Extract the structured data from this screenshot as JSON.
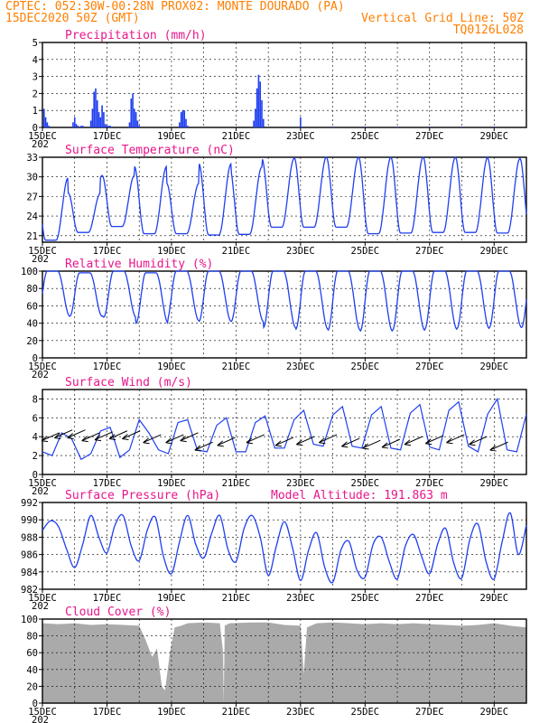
{
  "header": {
    "line1_left": "CPTEC:  052:30W-00:28N  PROX02: MONTE DOURADO (PA)",
    "line2_left": "15DEC2020 50Z (GMT)",
    "line2_right": "Vertical Grid Line: 50Z",
    "line3_right": "TQ0126L028"
  },
  "colors": {
    "header_text": "#ff7f00",
    "title_text": "#e8168c",
    "series_line": "#1f3ff0",
    "cloud_fill": "#aaaaaa",
    "axis": "#000000"
  },
  "x_axis": {
    "tick_labels": [
      "15DEC",
      "17DEC",
      "19DEC",
      "21DEC",
      "23DEC",
      "25DEC",
      "27DEC",
      "29DEC"
    ],
    "tick_days": [
      0,
      2,
      4,
      6,
      8,
      10,
      12,
      14
    ],
    "range_days": [
      0,
      15
    ],
    "year_fragment": "202"
  },
  "chart_data": [
    {
      "id": "precip",
      "type": "bar",
      "title": "Precipitation (mm/h)",
      "ylim": [
        0,
        5
      ],
      "yticks": [
        0,
        1,
        2,
        3,
        4,
        5
      ],
      "x_unit": "days since 15DEC2020",
      "x": [
        0.05,
        0.1,
        0.15,
        0.2,
        0.95,
        1.0,
        1.05,
        1.1,
        1.2,
        1.25,
        1.5,
        1.55,
        1.6,
        1.65,
        1.7,
        1.75,
        1.8,
        1.85,
        1.9,
        1.95,
        2.0,
        2.05,
        2.1,
        2.7,
        2.75,
        2.8,
        2.85,
        2.9,
        2.95,
        3.0,
        4.25,
        4.3,
        4.35,
        4.4,
        4.45,
        4.5,
        6.55,
        6.6,
        6.65,
        6.7,
        6.75,
        6.8,
        6.85,
        8.0,
        8.1,
        9.0,
        10.0,
        11.0,
        12.0,
        13.0,
        14.0
      ],
      "values": [
        1.1,
        0.6,
        0.3,
        0.1,
        0.3,
        0.6,
        0.2,
        0.1,
        0.1,
        0.1,
        0.4,
        1.1,
        2.1,
        2.3,
        1.6,
        0.9,
        0.6,
        1.3,
        0.9,
        0.2,
        0.1,
        0.1,
        0.1,
        0.3,
        1.7,
        2.0,
        1.1,
        0.9,
        0.4,
        0.1,
        0.3,
        0.9,
        1.0,
        1.0,
        0.5,
        0.1,
        0.4,
        1.1,
        2.3,
        3.1,
        2.7,
        1.6,
        0.5,
        0.6,
        0.05,
        0.05,
        0.05,
        0.05,
        0.05,
        0.05,
        0.05
      ]
    },
    {
      "id": "temp",
      "type": "line",
      "title": "Surface Temperature (nC)",
      "ylim": [
        20,
        33
      ],
      "yticks": [
        21,
        24,
        27,
        30,
        33
      ],
      "max_days": [
        0.8,
        1.8,
        2.85,
        3.85,
        4.85,
        5.85,
        6.8,
        7.8,
        8.8,
        9.8,
        10.8,
        11.8,
        12.8,
        13.8,
        14.8
      ],
      "max_values": [
        29.9,
        27.5,
        30.2,
        31.6,
        29.0,
        32.0,
        31.5,
        32.8,
        33.0,
        33.0,
        33.0,
        33.0,
        33.0,
        33.0,
        32.8
      ],
      "min_values": [
        20.3,
        21.5,
        22.4,
        21.3,
        21.3,
        21.1,
        21.2,
        22.3,
        22.3,
        22.3,
        21.3,
        21.4,
        21.5,
        21.5,
        21.4
      ]
    },
    {
      "id": "rh",
      "type": "line",
      "title": "Relative Humidity (%)",
      "ylim": [
        0,
        100
      ],
      "yticks": [
        0,
        20,
        40,
        60,
        80,
        100
      ],
      "min_days": [
        0.85,
        1.85,
        2.9,
        3.9,
        4.85,
        5.85,
        6.85,
        7.85,
        8.85,
        9.85,
        10.85,
        11.85,
        12.85,
        13.85,
        14.85
      ],
      "min_values": [
        48,
        48,
        47,
        40,
        43,
        42,
        42,
        35,
        33,
        32,
        31,
        32,
        33,
        34,
        35
      ],
      "night_values": [
        100,
        98,
        100,
        98,
        100,
        100,
        100,
        100,
        100,
        100,
        100,
        100,
        100,
        100,
        100
      ]
    },
    {
      "id": "wind",
      "type": "line",
      "title": "Surface Wind (m/s)",
      "ylim": [
        0,
        9
      ],
      "yticks": [
        0,
        2,
        4,
        6,
        8
      ],
      "x": [
        0.0,
        0.3,
        0.6,
        0.9,
        1.2,
        1.5,
        1.8,
        2.1,
        2.4,
        2.7,
        3.0,
        3.3,
        3.6,
        3.9,
        4.2,
        4.5,
        4.8,
        5.1,
        5.4,
        5.7,
        6.0,
        6.3,
        6.6,
        6.9,
        7.2,
        7.5,
        7.8,
        8.1,
        8.4,
        8.7,
        9.0,
        9.3,
        9.6,
        9.9,
        10.2,
        10.5,
        10.8,
        11.1,
        11.4,
        11.7,
        12.0,
        12.3,
        12.6,
        12.9,
        13.2,
        13.5,
        13.8,
        14.1,
        14.4,
        14.7,
        15.0
      ],
      "values": [
        2.4,
        2.0,
        4.4,
        3.8,
        1.6,
        2.2,
        4.6,
        5.0,
        1.8,
        2.6,
        5.8,
        4.4,
        2.6,
        2.2,
        5.5,
        5.8,
        2.6,
        2.4,
        5.2,
        6.0,
        2.4,
        2.4,
        5.5,
        6.2,
        2.8,
        2.8,
        5.8,
        6.8,
        3.2,
        3.0,
        6.3,
        7.2,
        3.0,
        2.8,
        6.3,
        7.2,
        2.8,
        2.6,
        6.5,
        7.4,
        2.9,
        2.6,
        6.8,
        7.7,
        3.0,
        2.4,
        6.4,
        8.0,
        2.6,
        2.4,
        6.4
      ],
      "arrow_days": [
        0.25,
        0.65,
        1.05,
        1.5,
        1.9,
        2.35,
        2.75,
        3.4,
        4.1,
        4.55,
        5.0,
        5.7,
        6.6,
        7.5,
        8.15,
        8.85,
        9.55,
        10.2,
        10.8,
        11.5,
        12.15,
        12.8,
        13.5,
        14.15
      ],
      "arrow_speeds": [
        4.0,
        4.3,
        4.3,
        4.0,
        4.1,
        4.2,
        4.2,
        3.8,
        3.8,
        4.0,
        3.0,
        3.5,
        3.8,
        3.5,
        3.6,
        3.8,
        3.4,
        3.2,
        3.3,
        3.6,
        3.7,
        3.8,
        3.6,
        3.0
      ]
    },
    {
      "id": "pres",
      "type": "line",
      "title": "Surface Pressure (hPa)",
      "extra_label": "Model Altitude: 191.863 m",
      "ylim": [
        982,
        992
      ],
      "yticks": [
        982,
        984,
        986,
        988,
        990,
        992
      ],
      "x": [
        0.0,
        0.25,
        0.5,
        0.75,
        1.0,
        1.25,
        1.5,
        1.75,
        2.0,
        2.25,
        2.5,
        2.75,
        3.0,
        3.25,
        3.5,
        3.75,
        4.0,
        4.25,
        4.5,
        4.75,
        5.0,
        5.25,
        5.5,
        5.75,
        6.0,
        6.25,
        6.5,
        6.75,
        7.0,
        7.25,
        7.5,
        7.75,
        8.0,
        8.25,
        8.5,
        8.75,
        9.0,
        9.25,
        9.5,
        9.75,
        10.0,
        10.25,
        10.5,
        10.75,
        11.0,
        11.25,
        11.5,
        11.75,
        12.0,
        12.25,
        12.5,
        12.75,
        13.0,
        13.25,
        13.5,
        13.75,
        14.0,
        14.25,
        14.5,
        14.75,
        15.0
      ],
      "values": [
        988.8,
        989.9,
        989.2,
        986.6,
        984.5,
        987.2,
        990.5,
        988.0,
        986.2,
        989.4,
        990.5,
        987.0,
        985.3,
        988.8,
        990.3,
        985.8,
        983.8,
        987.5,
        990.5,
        987.2,
        985.6,
        988.5,
        990.5,
        986.6,
        985.2,
        989.0,
        990.5,
        988.0,
        983.6,
        987.0,
        989.8,
        986.8,
        983.0,
        986.5,
        988.5,
        984.5,
        982.8,
        986.5,
        987.5,
        984.2,
        983.4,
        987.2,
        988.0,
        985.2,
        983.2,
        987.0,
        988.3,
        985.8,
        983.8,
        987.2,
        989.0,
        985.0,
        983.3,
        987.8,
        989.5,
        985.2,
        983.2,
        987.5,
        990.8,
        986.0,
        989.4
      ]
    },
    {
      "id": "cloud",
      "type": "area",
      "title": "Cloud Cover (%)",
      "ylim": [
        0,
        100
      ],
      "yticks": [
        0,
        20,
        40,
        60,
        80,
        100
      ],
      "x": [
        0.0,
        0.5,
        1.0,
        1.5,
        2.0,
        2.5,
        3.0,
        3.2,
        3.4,
        3.55,
        3.7,
        3.8,
        3.95,
        4.1,
        4.3,
        4.5,
        5.0,
        5.5,
        5.6,
        5.62,
        5.65,
        5.8,
        6.5,
        7.0,
        7.5,
        8.0,
        8.1,
        8.2,
        8.5,
        9.0,
        9.5,
        10.0,
        10.5,
        11.0,
        11.5,
        12.0,
        12.5,
        13.0,
        13.5,
        14.0,
        14.5,
        15.0
      ],
      "values": [
        95,
        94,
        95,
        93,
        94,
        93,
        92,
        75,
        55,
        65,
        20,
        15,
        60,
        90,
        92,
        95,
        96,
        95,
        60,
        0,
        92,
        95,
        96,
        96,
        93,
        92,
        35,
        90,
        95,
        96,
        95,
        94,
        95,
        94,
        95,
        94,
        93,
        92,
        93,
        95,
        92,
        90
      ]
    }
  ]
}
